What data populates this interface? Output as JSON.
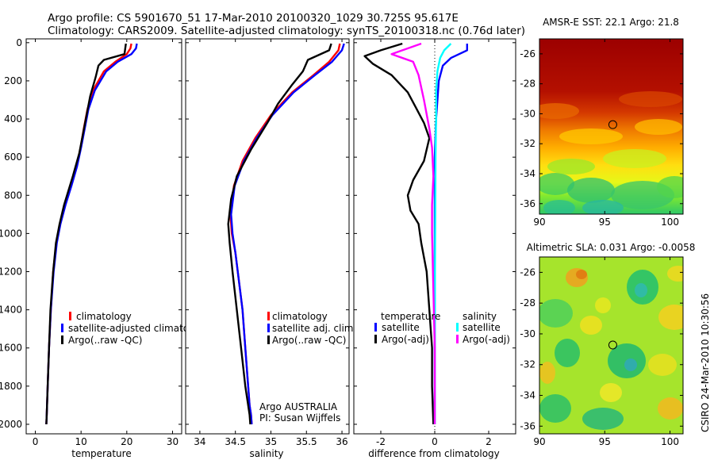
{
  "title": {
    "line1": "Argo profile: CS 5901670_51 17-Mar-2010 20100320_1029 30.725S 95.617E",
    "line2": "Climatology: CARS2009. Satellite-adjusted climatology: synTS_20100318.nc (0.76d later)"
  },
  "side_label": "CSIRO 24-Mar-2010 10:30:56",
  "colors": {
    "red": "#ff0000",
    "blue": "#0000ff",
    "black": "#000000",
    "cyan": "#00ffff",
    "magenta": "#ff00ff"
  },
  "chart_data": [
    {
      "id": "temperature",
      "type": "line",
      "xlabel": "temperature",
      "ylabel": "",
      "xlim": [
        -2,
        32
      ],
      "ylim": [
        2050,
        0
      ],
      "xticks": [
        0,
        10,
        20,
        30
      ],
      "yticks": [
        0,
        200,
        400,
        600,
        800,
        1000,
        1200,
        1400,
        1600,
        1800,
        2000
      ],
      "legend": {
        "position": "lower-right",
        "entries": [
          {
            "label": "climatology",
            "color": "#ff0000"
          },
          {
            "label": "satellite-adjusted climatology",
            "color": "#0000ff"
          },
          {
            "label": "Argo(..raw -QC)",
            "color": "#000000"
          }
        ]
      },
      "series": [
        {
          "name": "climatology",
          "color": "#ff0000",
          "x": [
            21.0,
            20.8,
            20.0,
            17.5,
            15.0,
            12.6,
            11.4,
            10.6,
            9.9,
            9.0,
            7.8,
            6.5,
            5.4,
            4.6,
            3.9,
            3.4,
            3.0,
            2.7,
            2.5,
            2.4
          ],
          "y": [
            5,
            30,
            60,
            100,
            150,
            250,
            350,
            450,
            550,
            650,
            750,
            850,
            950,
            1050,
            1200,
            1400,
            1600,
            1800,
            1950,
            2000
          ]
        },
        {
          "name": "satellite-adjusted climatology",
          "color": "#0000ff",
          "x": [
            22.2,
            22.0,
            21.0,
            18.0,
            15.5,
            13.0,
            11.6,
            10.8,
            10.0,
            9.1,
            7.9,
            6.6,
            5.5,
            4.7,
            4.0,
            3.4,
            3.0,
            2.7,
            2.5,
            2.4
          ],
          "y": [
            5,
            30,
            60,
            100,
            150,
            250,
            350,
            450,
            550,
            650,
            750,
            850,
            950,
            1050,
            1200,
            1400,
            1600,
            1800,
            1950,
            2000
          ]
        },
        {
          "name": "Argo(..raw -QC)",
          "color": "#000000",
          "x": [
            19.8,
            19.5,
            15.0,
            13.8,
            13.2,
            12.0,
            11.2,
            10.4,
            9.6,
            8.2,
            6.3,
            5.3,
            4.5,
            3.9,
            3.3,
            3.0,
            2.7,
            2.5,
            2.4
          ],
          "y": [
            5,
            60,
            90,
            120,
            180,
            280,
            380,
            480,
            580,
            700,
            850,
            950,
            1050,
            1200,
            1400,
            1600,
            1800,
            1950,
            2000
          ]
        }
      ]
    },
    {
      "id": "salinity",
      "type": "line",
      "xlabel": "salinity",
      "xlim": [
        33.8,
        36.1
      ],
      "ylim": [
        2050,
        0
      ],
      "xticks": [
        34,
        34.5,
        35,
        35.5,
        36
      ],
      "legend": {
        "position": "lower-right",
        "entries": [
          {
            "label": "climatology",
            "color": "#ff0000"
          },
          {
            "label": "satellite adj. clim.",
            "color": "#0000ff"
          },
          {
            "label": "Argo(..raw -QC)",
            "color": "#000000"
          }
        ]
      },
      "annotation": {
        "line1": "Argo AUSTRALIA",
        "line2": "PI: Susan Wijffels"
      },
      "series": [
        {
          "name": "climatology",
          "color": "#ff0000",
          "x": [
            35.97,
            35.95,
            35.82,
            35.6,
            35.3,
            35.0,
            34.78,
            34.6,
            34.48,
            34.43,
            34.45,
            34.5,
            34.55,
            34.6,
            34.64,
            34.68,
            34.7,
            34.72,
            34.73
          ],
          "y": [
            5,
            40,
            100,
            170,
            260,
            380,
            500,
            620,
            750,
            900,
            1000,
            1100,
            1250,
            1400,
            1600,
            1800,
            1900,
            1950,
            2000
          ]
        },
        {
          "name": "satellite adj. clim.",
          "color": "#0000ff",
          "x": [
            36.03,
            36.0,
            35.86,
            35.62,
            35.32,
            35.02,
            34.8,
            34.62,
            34.49,
            34.44,
            34.46,
            34.5,
            34.55,
            34.6,
            34.64,
            34.68,
            34.7,
            34.72,
            34.73
          ],
          "y": [
            5,
            40,
            100,
            170,
            260,
            380,
            500,
            620,
            750,
            900,
            1000,
            1100,
            1250,
            1400,
            1600,
            1800,
            1900,
            1950,
            2000
          ]
        },
        {
          "name": "Argo(..raw -QC)",
          "color": "#000000",
          "x": [
            35.85,
            35.82,
            35.52,
            35.45,
            35.3,
            35.1,
            34.95,
            34.72,
            34.52,
            34.44,
            34.4,
            34.42,
            34.46,
            34.52,
            34.58,
            34.64,
            34.68,
            34.7,
            34.71
          ],
          "y": [
            5,
            40,
            90,
            150,
            220,
            320,
            420,
            560,
            700,
            820,
            950,
            1050,
            1200,
            1400,
            1600,
            1800,
            1900,
            1950,
            2000
          ]
        }
      ]
    },
    {
      "id": "difference",
      "type": "line",
      "xlabel": "difference from climatology",
      "xlim": [
        -3,
        3
      ],
      "ylim": [
        2050,
        0
      ],
      "xticks": [
        -2,
        0,
        2
      ],
      "legend": {
        "position": "lower",
        "group1_title": "temperature",
        "group2_title": "salinity",
        "entries": [
          {
            "label": "satellite",
            "color": "#0000ff",
            "group": "temperature"
          },
          {
            "label": "Argo(-adj)",
            "color": "#000000",
            "group": "temperature"
          },
          {
            "label": "satellite",
            "color": "#00ffff",
            "group": "salinity"
          },
          {
            "label": "Argo(-adj)",
            "color": "#ff00ff",
            "group": "salinity"
          }
        ]
      },
      "series": [
        {
          "name": "temperature satellite",
          "color": "#0000ff",
          "x": [
            1.2,
            1.2,
            0.6,
            0.3,
            0.15,
            0.1,
            0.05,
            0.0,
            0.0,
            0.0,
            0.0,
            0.0
          ],
          "y": [
            5,
            40,
            80,
            120,
            200,
            300,
            400,
            600,
            800,
            1200,
            1600,
            2000
          ]
        },
        {
          "name": "temperature Argo(-adj)",
          "color": "#000000",
          "x": [
            -1.2,
            -2.0,
            -2.6,
            -2.3,
            -1.6,
            -1.0,
            -0.7,
            -0.4,
            -0.2,
            -0.4,
            -0.8,
            -1.0,
            -0.9,
            -0.6,
            -0.5,
            -0.3,
            -0.2,
            -0.1,
            -0.1,
            -0.05
          ],
          "y": [
            5,
            40,
            70,
            110,
            170,
            260,
            340,
            420,
            500,
            620,
            720,
            800,
            880,
            950,
            1050,
            1200,
            1400,
            1600,
            1800,
            2000
          ]
        },
        {
          "name": "salinity satellite",
          "color": "#00ffff",
          "x": [
            0.6,
            0.35,
            0.2,
            0.1,
            0.05,
            0.05,
            0.03,
            0.02,
            0.01,
            0.0,
            0.0
          ],
          "y": [
            5,
            40,
            80,
            150,
            250,
            400,
            600,
            900,
            1200,
            1600,
            2000
          ]
        },
        {
          "name": "salinity Argo(-adj)",
          "color": "#ff00ff",
          "x": [
            -0.5,
            -1.2,
            -1.6,
            -0.8,
            -0.6,
            -0.4,
            -0.2,
            -0.1,
            -0.05,
            -0.1,
            -0.1,
            -0.05,
            0.0,
            0.0
          ],
          "y": [
            5,
            40,
            60,
            100,
            170,
            300,
            450,
            550,
            700,
            850,
            1000,
            1300,
            1600,
            2000
          ]
        }
      ]
    },
    {
      "id": "sst_map",
      "type": "heatmap",
      "title": "AMSR-E SST: 22.1  Argo: 21.8",
      "xlim": [
        90,
        101
      ],
      "ylim": [
        -36.7,
        -25
      ],
      "xticks": [
        90,
        95,
        100
      ],
      "yticks": [
        -26,
        -28,
        -30,
        -32,
        -34,
        -36
      ],
      "marker": {
        "lon": 95.617,
        "lat": -30.725
      }
    },
    {
      "id": "sla_map",
      "type": "heatmap",
      "title": "Altimetric SLA: 0.031  Argo: -0.0058",
      "xlim": [
        90,
        101
      ],
      "ylim": [
        -36.5,
        -25
      ],
      "xticks": [
        90,
        95,
        100
      ],
      "yticks": [
        -26,
        -28,
        -30,
        -32,
        -34,
        -36
      ],
      "marker": {
        "lon": 95.617,
        "lat": -30.725
      }
    }
  ]
}
